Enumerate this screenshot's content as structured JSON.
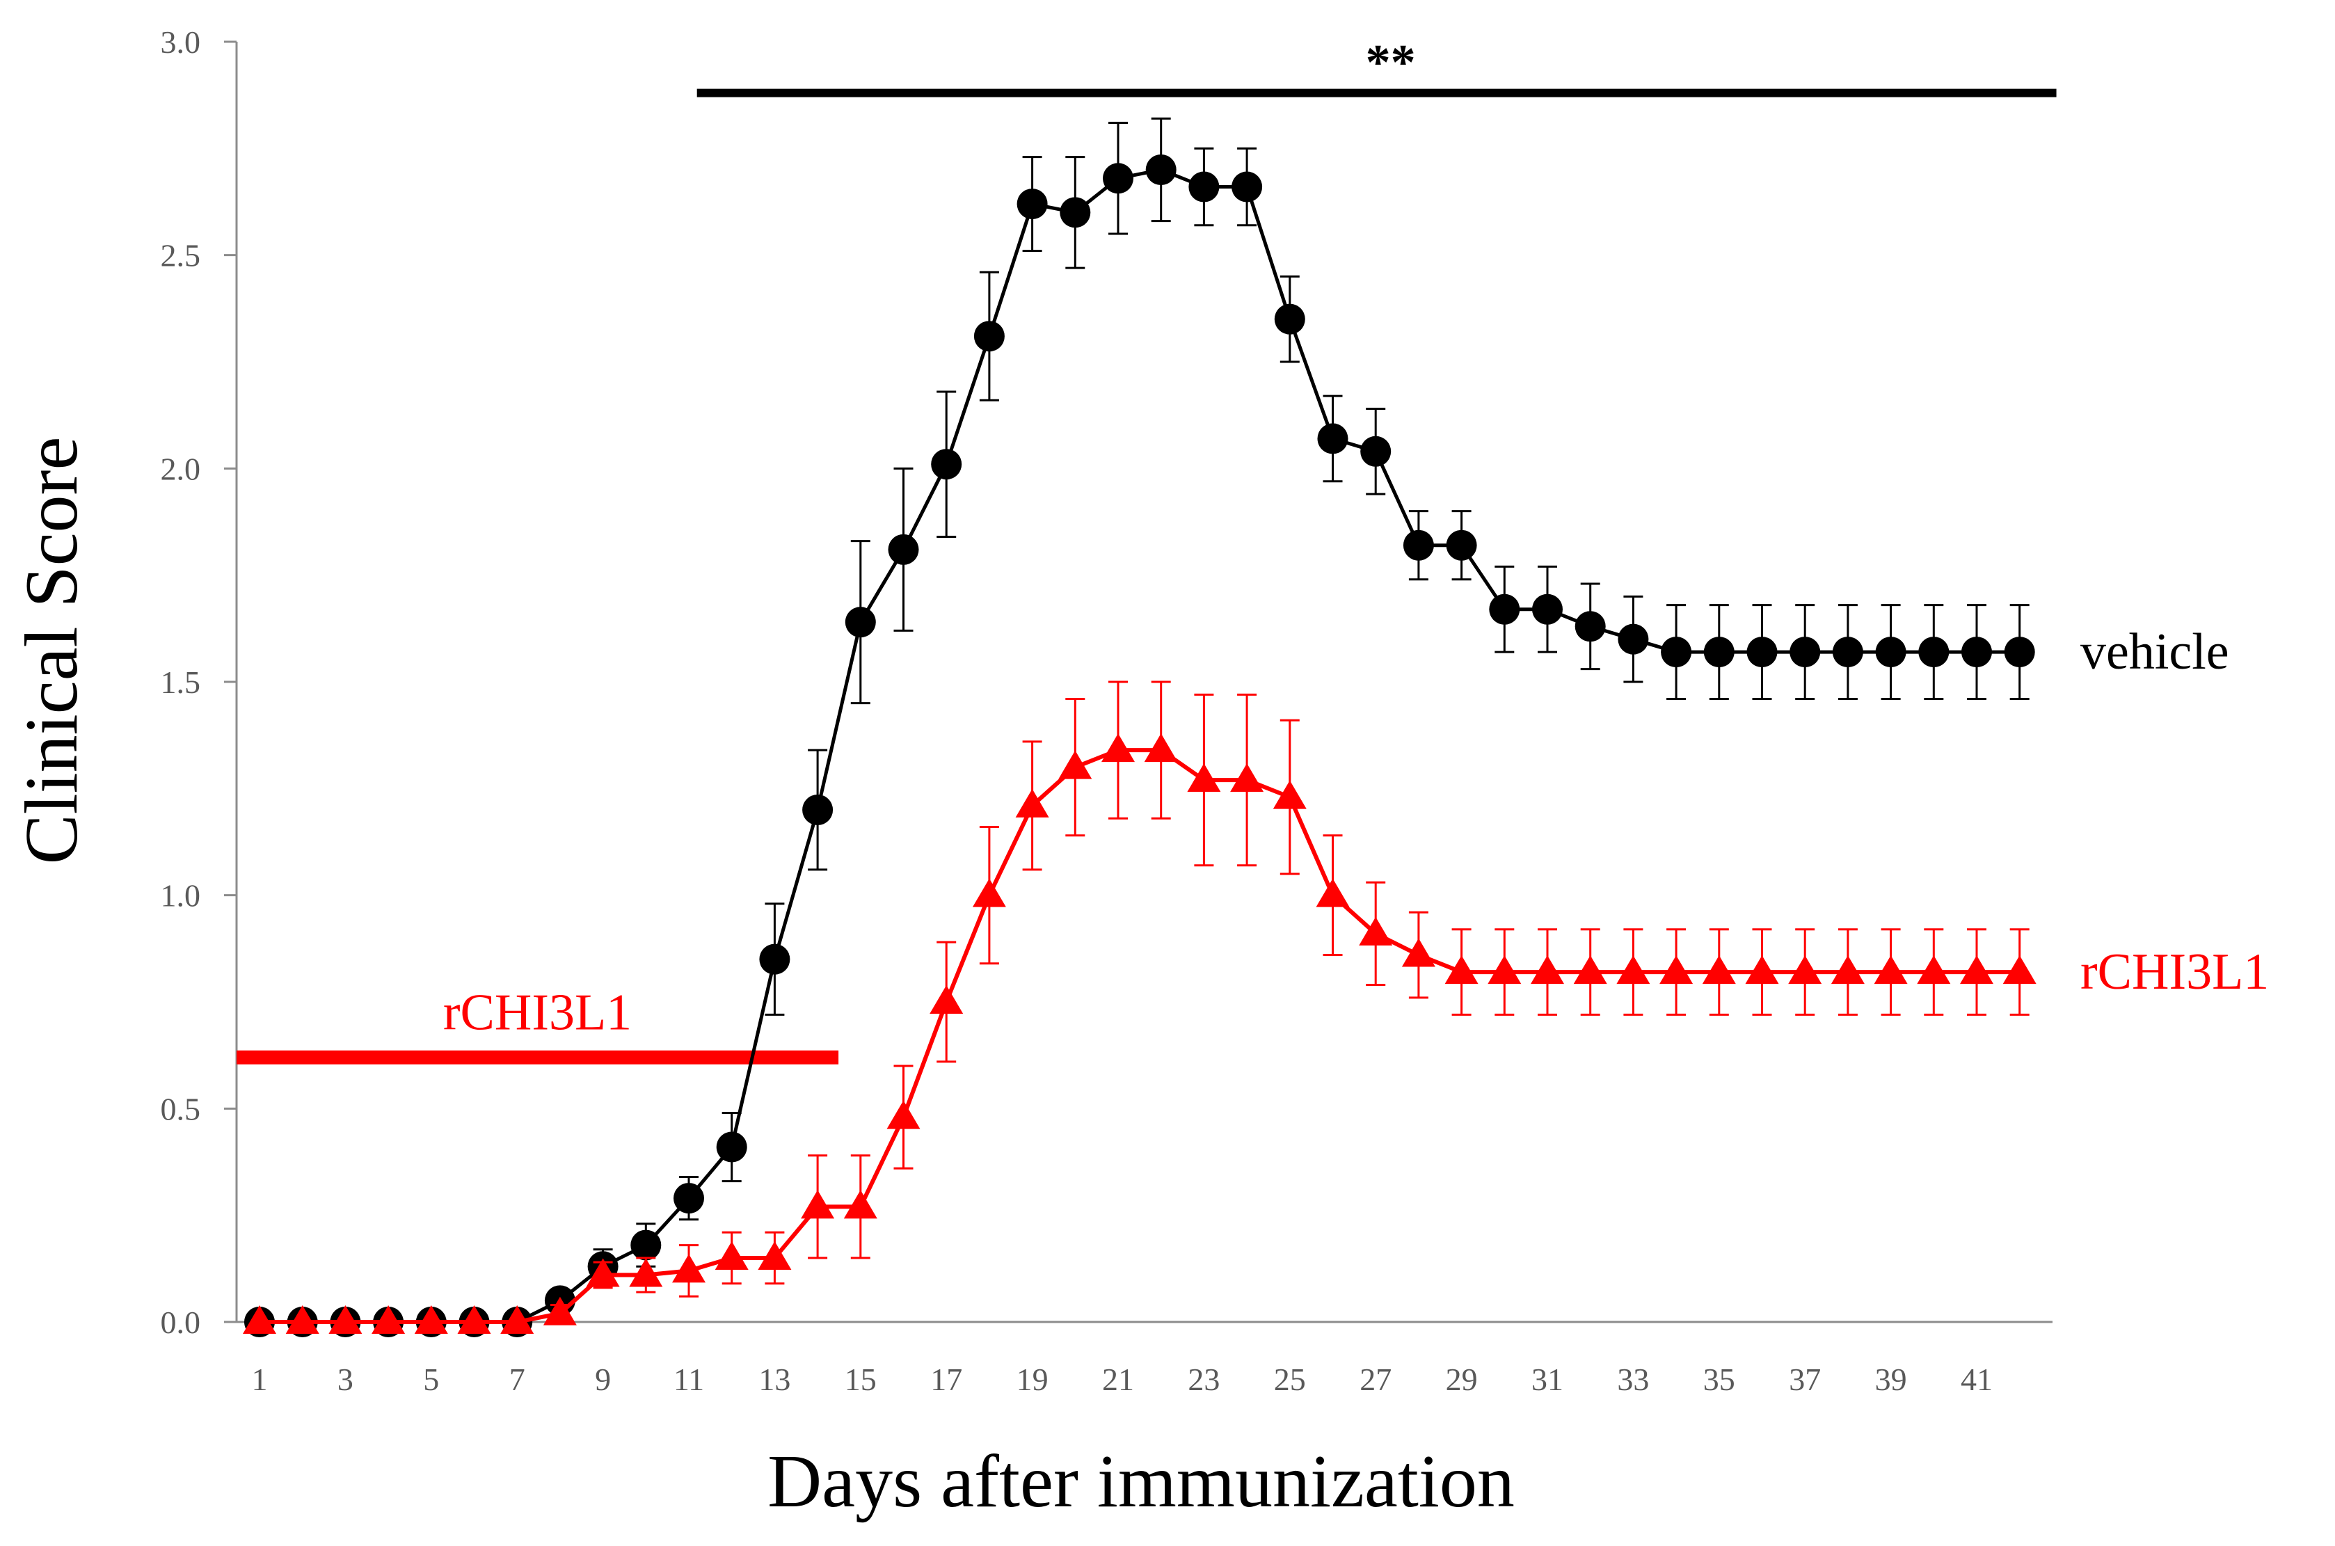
{
  "chart_data": {
    "type": "line",
    "title": "",
    "xlabel": "Days after immunization",
    "ylabel": "Clinical Score",
    "xlim": [
      1,
      42
    ],
    "ylim": [
      0,
      3
    ],
    "grid": false,
    "x": [
      1,
      2,
      3,
      4,
      5,
      6,
      7,
      8,
      9,
      10,
      11,
      12,
      13,
      14,
      15,
      16,
      17,
      18,
      19,
      20,
      21,
      22,
      23,
      24,
      25,
      26,
      27,
      28,
      29,
      30,
      31,
      32,
      33,
      34,
      35,
      36,
      37,
      38,
      39,
      40,
      41,
      42
    ],
    "x_tick_labels": [
      "1",
      "3",
      "5",
      "7",
      "9",
      "11",
      "13",
      "15",
      "17",
      "19",
      "21",
      "23",
      "25",
      "27",
      "29",
      "31",
      "33",
      "35",
      "37",
      "39",
      "41"
    ],
    "y_tick_labels": [
      "0.0",
      "0.5",
      "1.0",
      "1.5",
      "2.0",
      "2.5",
      "3.0"
    ],
    "series": [
      {
        "name": "vehicle",
        "color": "#000000",
        "marker": "circle",
        "values": [
          0,
          0,
          0,
          0,
          0,
          0,
          0,
          0.05,
          0.13,
          0.18,
          0.29,
          0.41,
          0.85,
          1.2,
          1.64,
          1.81,
          2.01,
          2.31,
          2.62,
          2.6,
          2.68,
          2.7,
          2.66,
          2.66,
          2.35,
          2.07,
          2.04,
          1.82,
          1.82,
          1.67,
          1.67,
          1.63,
          1.6,
          1.57,
          1.57,
          1.57,
          1.57,
          1.57,
          1.57,
          1.57,
          1.57,
          1.57
        ],
        "errors": [
          0,
          0,
          0,
          0,
          0,
          0,
          0,
          0.02,
          0.04,
          0.05,
          0.05,
          0.08,
          0.13,
          0.14,
          0.19,
          0.19,
          0.17,
          0.15,
          0.11,
          0.13,
          0.13,
          0.12,
          0.09,
          0.09,
          0.1,
          0.1,
          0.1,
          0.08,
          0.08,
          0.1,
          0.1,
          0.1,
          0.1,
          0.11,
          0.11,
          0.11,
          0.11,
          0.11,
          0.11,
          0.11,
          0.11,
          0.11
        ]
      },
      {
        "name": "rCHI3L1",
        "color": "#ff0000",
        "marker": "triangle",
        "values": [
          0,
          0,
          0,
          0,
          0,
          0,
          0,
          0.02,
          0.11,
          0.11,
          0.12,
          0.15,
          0.15,
          0.27,
          0.27,
          0.48,
          0.75,
          1.0,
          1.21,
          1.3,
          1.34,
          1.34,
          1.27,
          1.27,
          1.23,
          1.0,
          0.91,
          0.86,
          0.82,
          0.82,
          0.82,
          0.82,
          0.82,
          0.82,
          0.82,
          0.82,
          0.82,
          0.82,
          0.82,
          0.82,
          0.82,
          0.82
        ],
        "errors": [
          0,
          0,
          0,
          0,
          0,
          0,
          0,
          0.02,
          0.03,
          0.04,
          0.06,
          0.06,
          0.06,
          0.12,
          0.12,
          0.12,
          0.14,
          0.16,
          0.15,
          0.16,
          0.16,
          0.16,
          0.2,
          0.2,
          0.18,
          0.14,
          0.12,
          0.1,
          0.1,
          0.1,
          0.1,
          0.1,
          0.1,
          0.1,
          0.1,
          0.1,
          0.1,
          0.1,
          0.1,
          0.1,
          0.1,
          0.1
        ]
      }
    ],
    "annotations": [
      {
        "id": "treatment",
        "text": "rCHI3L1",
        "color": "#ff0000",
        "x_range": [
          1,
          14
        ],
        "y": 0.62
      },
      {
        "id": "significance",
        "text": "**",
        "color": "#000000",
        "x_range": [
          12,
          42.5
        ],
        "y": 2.88
      }
    ]
  }
}
